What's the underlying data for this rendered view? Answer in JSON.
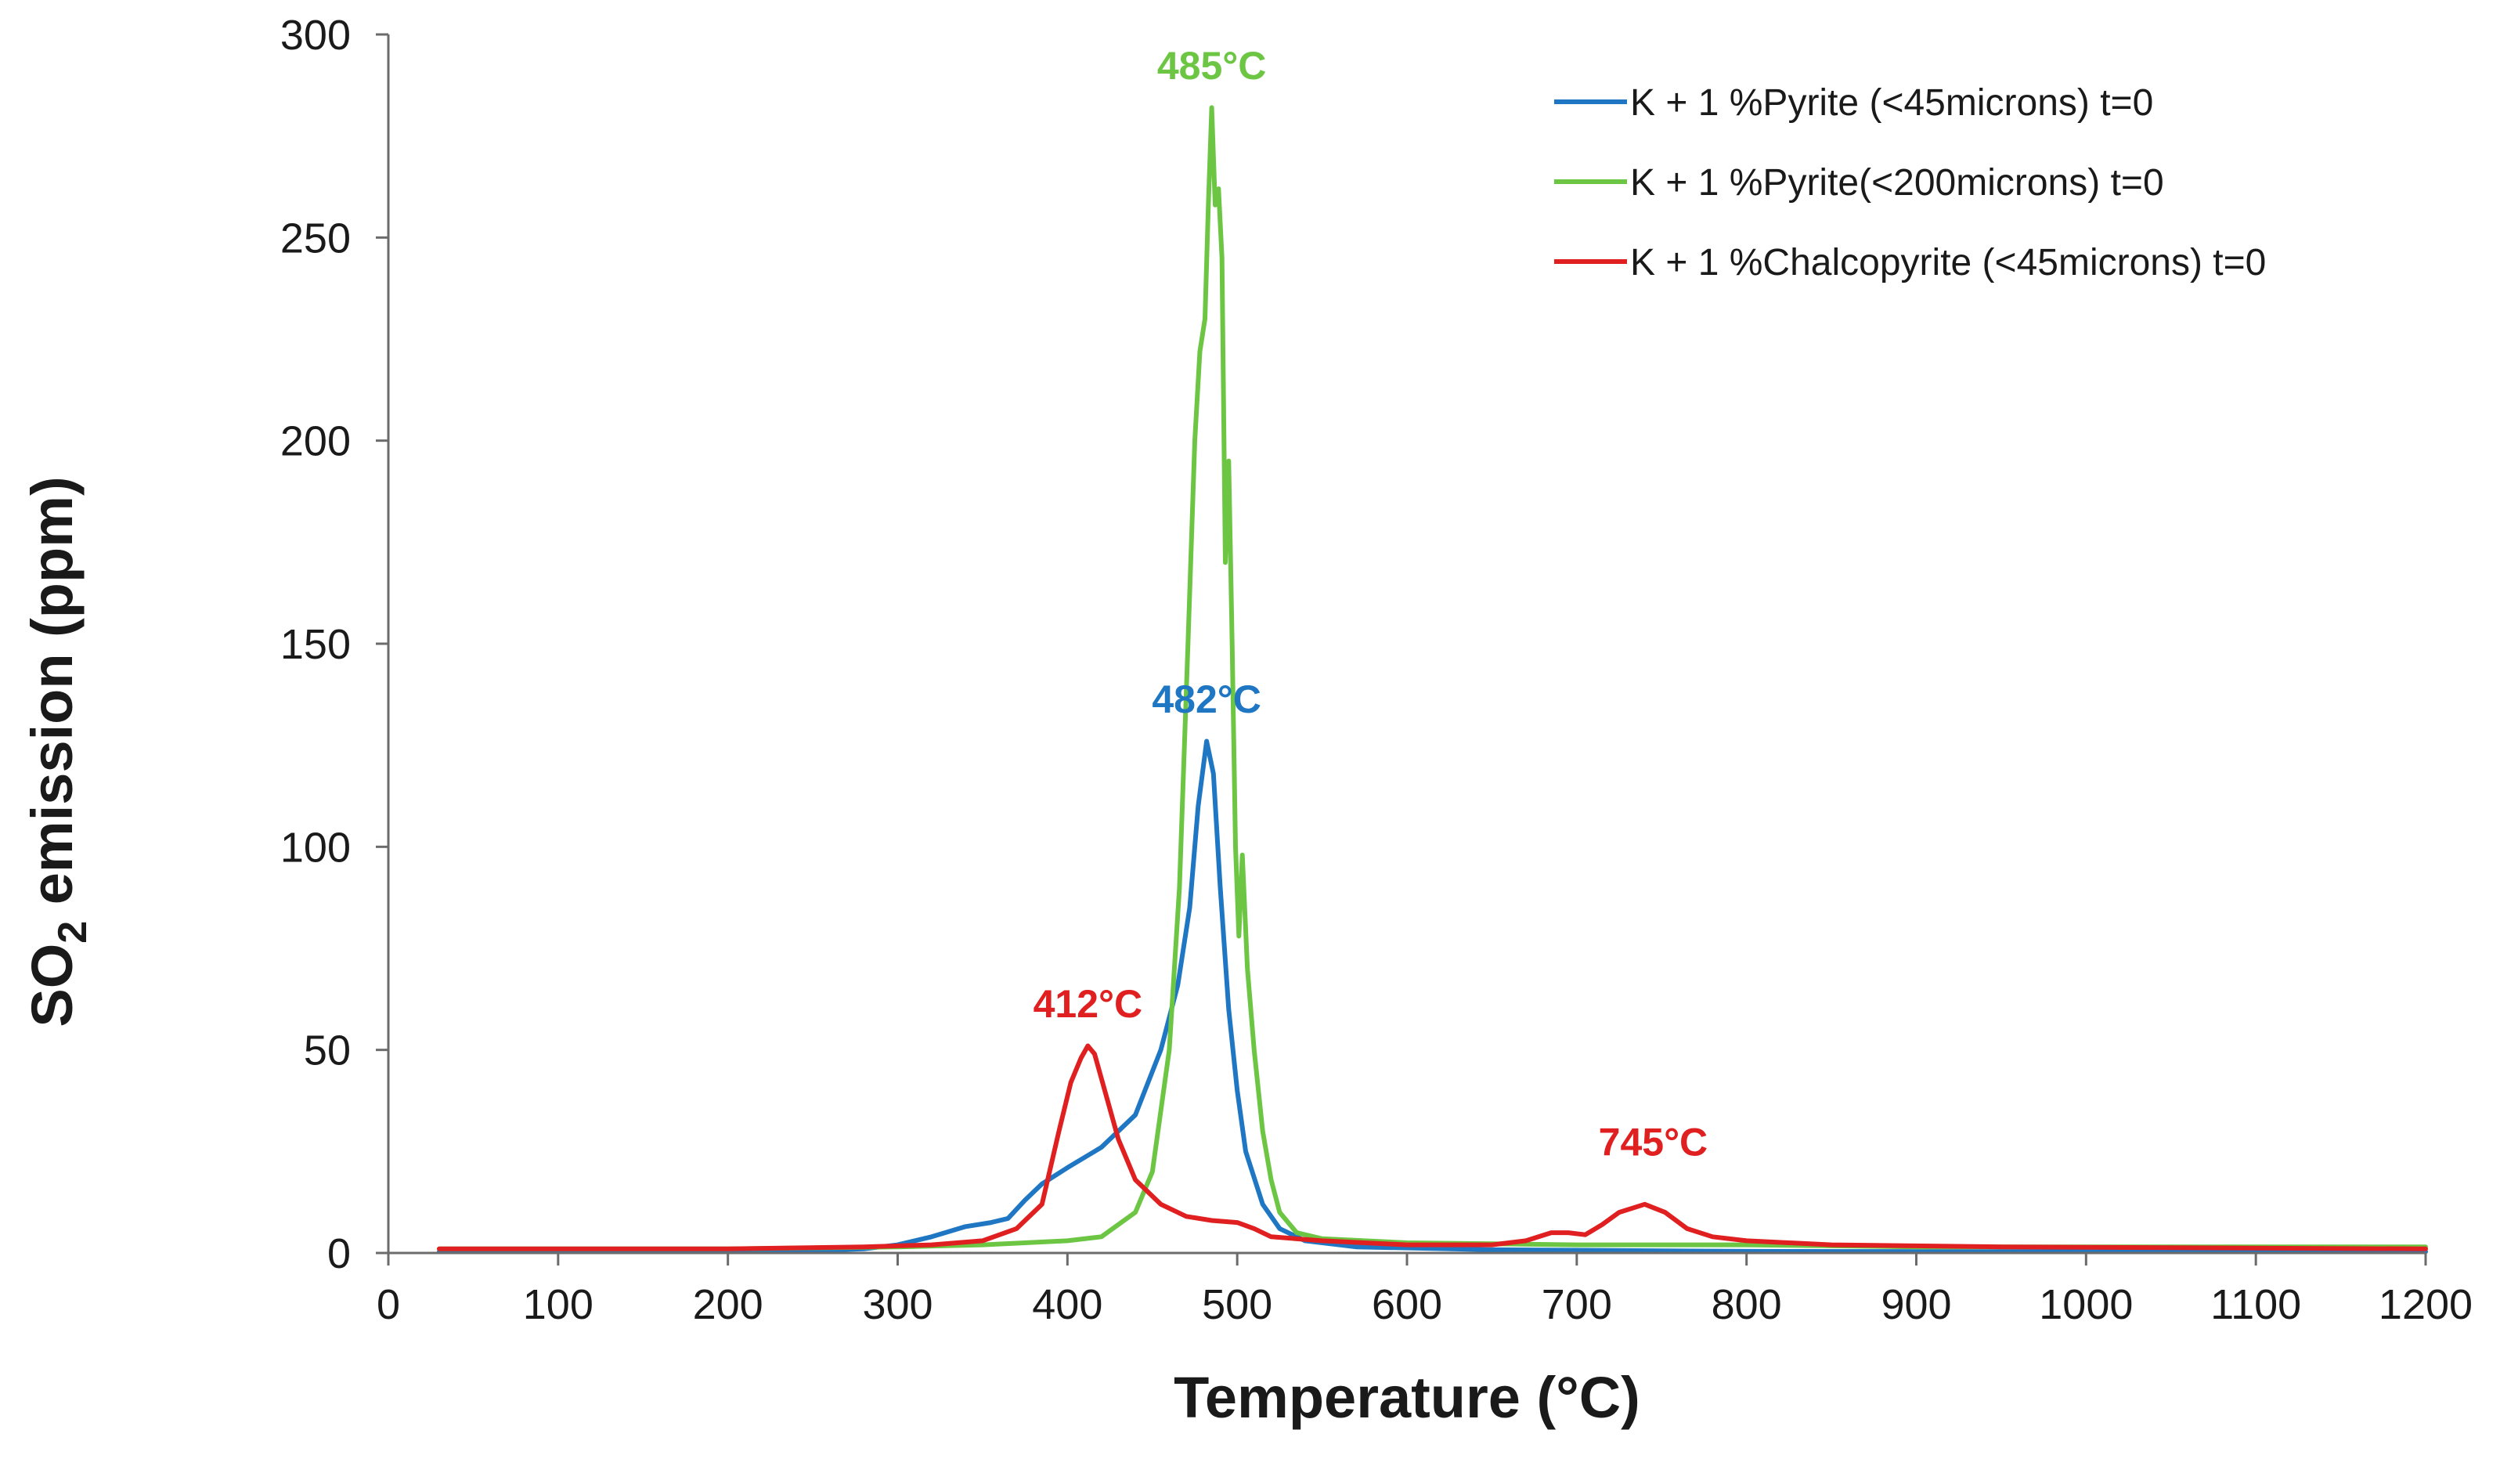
{
  "chart_data": {
    "type": "line",
    "title": "",
    "xlabel": "Temperature (°C)",
    "ylabel_main": "SO",
    "ylabel_sub": "2",
    "ylabel_rest": " emission (ppm)",
    "xlim": [
      0,
      1200
    ],
    "ylim": [
      0,
      300
    ],
    "x_ticks": [
      "0",
      "100",
      "200",
      "300",
      "400",
      "500",
      "600",
      "700",
      "800",
      "900",
      "1000",
      "1100",
      "1200"
    ],
    "y_ticks": [
      "0",
      "50",
      "100",
      "150",
      "200",
      "250",
      "300"
    ],
    "grid": false,
    "legend_position": "top-right",
    "series": [
      {
        "name": "K + 1 %Pyrite (<45microns) t=0",
        "color": "#1f77c4",
        "points": [
          [
            30,
            0.3
          ],
          [
            100,
            0.3
          ],
          [
            200,
            0.4
          ],
          [
            250,
            0.6
          ],
          [
            280,
            1
          ],
          [
            300,
            2
          ],
          [
            320,
            4
          ],
          [
            340,
            6.5
          ],
          [
            355,
            7.5
          ],
          [
            365,
            8.5
          ],
          [
            375,
            13
          ],
          [
            385,
            17
          ],
          [
            400,
            21
          ],
          [
            420,
            26
          ],
          [
            440,
            34
          ],
          [
            455,
            50
          ],
          [
            465,
            66
          ],
          [
            472,
            85
          ],
          [
            477,
            110
          ],
          [
            482,
            126
          ],
          [
            486,
            118
          ],
          [
            490,
            90
          ],
          [
            495,
            60
          ],
          [
            500,
            40
          ],
          [
            505,
            25
          ],
          [
            515,
            12
          ],
          [
            525,
            6
          ],
          [
            540,
            3
          ],
          [
            570,
            1.5
          ],
          [
            650,
            0.8
          ],
          [
            800,
            0.4
          ],
          [
            1000,
            0.3
          ],
          [
            1200,
            0.3
          ]
        ]
      },
      {
        "name": "K + 1 %Pyrite(<200microns) t=0",
        "color": "#6cc644",
        "points": [
          [
            30,
            1
          ],
          [
            200,
            1
          ],
          [
            300,
            1.5
          ],
          [
            350,
            2
          ],
          [
            400,
            3
          ],
          [
            420,
            4
          ],
          [
            440,
            10
          ],
          [
            450,
            20
          ],
          [
            460,
            50
          ],
          [
            466,
            90
          ],
          [
            471,
            150
          ],
          [
            475,
            200
          ],
          [
            478,
            222
          ],
          [
            481,
            230
          ],
          [
            483,
            258
          ],
          [
            485,
            282
          ],
          [
            487,
            258
          ],
          [
            489,
            262
          ],
          [
            491,
            245
          ],
          [
            493,
            170
          ],
          [
            495,
            195
          ],
          [
            497,
            150
          ],
          [
            499,
            100
          ],
          [
            501,
            78
          ],
          [
            503,
            98
          ],
          [
            506,
            70
          ],
          [
            510,
            50
          ],
          [
            515,
            30
          ],
          [
            520,
            18
          ],
          [
            525,
            10
          ],
          [
            535,
            5
          ],
          [
            550,
            3.5
          ],
          [
            600,
            2.5
          ],
          [
            700,
            2
          ],
          [
            800,
            2
          ],
          [
            900,
            1.5
          ],
          [
            1000,
            1.5
          ],
          [
            1200,
            1.5
          ]
        ]
      },
      {
        "name": "K + 1 %Chalcopyrite (<45microns) t=0",
        "color": "#e02020",
        "points": [
          [
            30,
            1
          ],
          [
            200,
            1
          ],
          [
            280,
            1.5
          ],
          [
            320,
            2
          ],
          [
            350,
            3
          ],
          [
            370,
            6
          ],
          [
            385,
            12
          ],
          [
            395,
            30
          ],
          [
            402,
            42
          ],
          [
            408,
            48
          ],
          [
            412,
            51
          ],
          [
            416,
            49
          ],
          [
            422,
            40
          ],
          [
            430,
            28
          ],
          [
            440,
            18
          ],
          [
            455,
            12
          ],
          [
            470,
            9
          ],
          [
            485,
            8
          ],
          [
            500,
            7.5
          ],
          [
            510,
            6
          ],
          [
            520,
            4
          ],
          [
            550,
            3
          ],
          [
            600,
            2
          ],
          [
            650,
            2
          ],
          [
            670,
            3
          ],
          [
            685,
            5
          ],
          [
            695,
            5
          ],
          [
            705,
            4.5
          ],
          [
            715,
            7
          ],
          [
            725,
            10
          ],
          [
            740,
            12
          ],
          [
            752,
            10
          ],
          [
            765,
            6
          ],
          [
            780,
            4
          ],
          [
            800,
            3
          ],
          [
            850,
            2
          ],
          [
            950,
            1.5
          ],
          [
            1200,
            1
          ]
        ]
      }
    ],
    "annotations": [
      {
        "text": "485°C",
        "x": 485,
        "y": 289,
        "color": "#6cc644"
      },
      {
        "text": "482°C",
        "x": 482,
        "y": 133,
        "color": "#1f77c4"
      },
      {
        "text": "412°C",
        "x": 412,
        "y": 58,
        "color": "#e02020"
      },
      {
        "text": "745°C",
        "x": 745,
        "y": 24,
        "color": "#e02020"
      }
    ]
  }
}
